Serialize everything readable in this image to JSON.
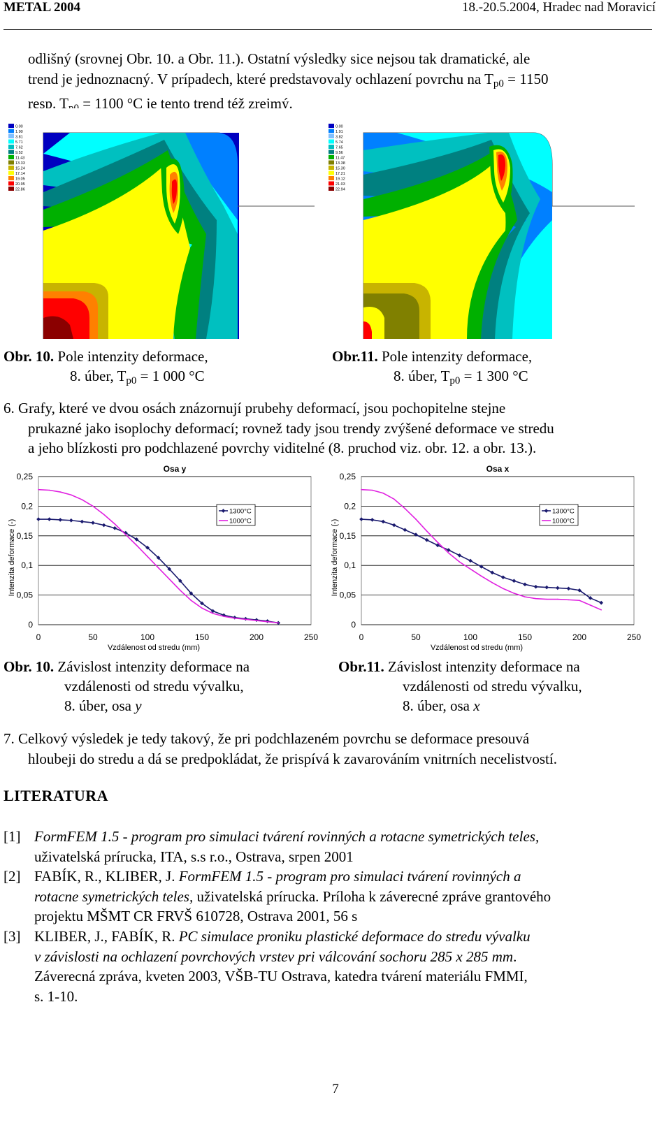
{
  "header": {
    "left": "METAL 2004",
    "right": "18.-20.5.2004, Hradec nad Moravicí"
  },
  "intro": {
    "line1": "odlišný (srovnej  Obr. 10.  a Obr. 11.). Ostatní výsledky sice nejsou tak dramatické, ale",
    "line2": "trend je jednoznacný. V prípadech, které predstavovaly ochlazení povrchu na T",
    "line2_sub": "p0",
    "line2_end": " = 1150",
    "line3": "resp. T",
    "line3_sub": "p0",
    "line3_end": " = 1100 °C je tento trend též zrejmý."
  },
  "fem_captions": {
    "left_label": "Obr. 10.",
    "left_text": " Pole intenzity deformace,",
    "left_line2": "8. úber, T",
    "left_sub": "p0",
    "left_end": " = 1 000 °C",
    "right_label": "Obr.11.",
    "right_text": " Pole intenzity deformace,",
    "right_line2": "8. úber, T",
    "right_sub": "p0",
    "right_end": " = 1 300 °C"
  },
  "fem_legend_values": [
    "0.00",
    "1.90",
    "3.81",
    "5.71",
    "7.62",
    "9.52",
    "11.43",
    "13.33",
    "15.24",
    "17.14",
    "19.05",
    "20.95",
    "22.86"
  ],
  "fem_legend_values_right": [
    "0.00",
    "1.91",
    "3.82",
    "5.74",
    "7.65",
    "9.56",
    "11.47",
    "13.38",
    "15.30",
    "17.21",
    "19.12",
    "21.03",
    "22.94"
  ],
  "fem_colors": [
    "#8b0000",
    "#ff0000",
    "#ff8000",
    "#ffff00",
    "#c8b400",
    "#808000",
    "#00b000",
    "#008080",
    "#00c0c0",
    "#00ffff",
    "#80c0ff",
    "#0080ff",
    "#0000c0"
  ],
  "para6": {
    "line1": "6. Grafy, které ve dvou osách znázornují prubehy deformací, jsou pochopitelne stejne",
    "line2": "prukazné jako isoplochy deformací; rovnež tady jsou trendy zvýšené deformace ve stredu",
    "line3": "a jeho blízkosti pro podchlazené povrchy viditelné (8. pruchod viz. obr. 12. a obr. 13.)."
  },
  "chart_data": [
    {
      "type": "line",
      "title": "Osa y",
      "xlabel": "Vzdálenost od stredu (mm)",
      "ylabel": "Intenzita deformace (-)",
      "xlim": [
        0,
        250
      ],
      "ylim": [
        0,
        0.25
      ],
      "xticks": [
        "0",
        "50",
        "100",
        "150",
        "200",
        "250"
      ],
      "yticks": [
        "0",
        "0,05",
        "0,1",
        "0,15",
        "0,2",
        "0,25"
      ],
      "grid": "horizontal",
      "legend": "top-right",
      "series": [
        {
          "name": "1300°C",
          "color": "#1a1a6e",
          "marker": "diamond",
          "x": [
            0,
            10,
            20,
            30,
            40,
            50,
            60,
            70,
            80,
            90,
            100,
            110,
            120,
            130,
            140,
            150,
            160,
            170,
            180,
            190,
            200,
            210,
            220
          ],
          "y": [
            0.178,
            0.178,
            0.177,
            0.176,
            0.174,
            0.172,
            0.168,
            0.163,
            0.155,
            0.144,
            0.13,
            0.113,
            0.094,
            0.074,
            0.053,
            0.036,
            0.023,
            0.016,
            0.012,
            0.01,
            0.008,
            0.006,
            0.003
          ]
        },
        {
          "name": "1000°C",
          "color": "#e020e0",
          "marker": "none",
          "x": [
            0,
            10,
            20,
            30,
            40,
            50,
            60,
            70,
            80,
            90,
            100,
            110,
            120,
            130,
            140,
            150,
            160,
            170,
            180,
            190,
            200,
            210,
            220
          ],
          "y": [
            0.228,
            0.227,
            0.224,
            0.219,
            0.211,
            0.2,
            0.186,
            0.17,
            0.152,
            0.134,
            0.115,
            0.096,
            0.077,
            0.058,
            0.041,
            0.028,
            0.019,
            0.014,
            0.011,
            0.009,
            0.007,
            0.005,
            0.003
          ]
        }
      ]
    },
    {
      "type": "line",
      "title": "Osa x",
      "xlabel": "Vzdálenost od stredu (mm)",
      "ylabel": "Intenzita deformace (-)",
      "xlim": [
        0,
        250
      ],
      "ylim": [
        0,
        0.25
      ],
      "xticks": [
        "0",
        "50",
        "100",
        "150",
        "200",
        "250"
      ],
      "yticks": [
        "0",
        "0,05",
        "0,1",
        "0,15",
        "0,2",
        "0,25"
      ],
      "grid": "horizontal",
      "legend": "top-right",
      "series": [
        {
          "name": "1300°C",
          "color": "#1a1a6e",
          "marker": "diamond",
          "x": [
            0,
            10,
            20,
            30,
            40,
            50,
            60,
            70,
            80,
            90,
            100,
            110,
            120,
            130,
            140,
            150,
            160,
            170,
            180,
            190,
            200,
            210,
            220
          ],
          "y": [
            0.178,
            0.177,
            0.174,
            0.168,
            0.16,
            0.152,
            0.143,
            0.134,
            0.126,
            0.117,
            0.108,
            0.098,
            0.088,
            0.08,
            0.074,
            0.068,
            0.064,
            0.063,
            0.062,
            0.061,
            0.058,
            0.045,
            0.037
          ]
        },
        {
          "name": "1000°C",
          "color": "#e020e0",
          "marker": "none",
          "x": [
            0,
            10,
            20,
            30,
            40,
            50,
            60,
            70,
            80,
            90,
            100,
            110,
            120,
            130,
            140,
            150,
            160,
            170,
            180,
            190,
            200,
            210,
            220
          ],
          "y": [
            0.228,
            0.227,
            0.222,
            0.212,
            0.196,
            0.178,
            0.158,
            0.139,
            0.121,
            0.106,
            0.094,
            0.082,
            0.071,
            0.061,
            0.053,
            0.047,
            0.044,
            0.043,
            0.043,
            0.042,
            0.041,
            0.033,
            0.025
          ]
        }
      ]
    }
  ],
  "chart_captions": {
    "left_label": "Obr. 10.",
    "left_line1": " Závislost intenzity deformace na",
    "left_line2": "vzdálenosti od stredu vývalku,",
    "left_line3": "8. úber, osa ",
    "left_axis": "y",
    "right_label": "Obr.11.",
    "right_line1": " Závislost intenzity deformace na",
    "right_line2": "vzdálenosti od stredu vývalku,",
    "right_line3": "8. úber, osa ",
    "right_axis": "x"
  },
  "para7": {
    "line1": "7. Celkový výsledek je tedy takový, že pri podchlazeném povrchu se deformace presouvá",
    "line2": "hloubeji do stredu a dá se predpokládat, že prispívá k zavarováním vnitrních necelistvostí."
  },
  "literatura": {
    "heading": "LITERATURA",
    "refs": [
      {
        "num": "[1]",
        "l1_it": "FormFEM 1.5 - program pro simulaci tvárení rovinných a rotacne symetrických teles,",
        "l2": "uživatelská prírucka, ITA, s.s r.o., Ostrava, srpen 2001"
      },
      {
        "num": "[2]",
        "l1_a": "FABÍK, R., KLIBER, J. ",
        "l1_it": "FormFEM 1.5  - program pro simulaci tvárení rovinných a",
        "l2_it": "rotacne symetrických teles,",
        "l2_b": " uživatelská prírucka. Príloha k záverecné zpráve grantového",
        "l3": "projektu MŠMT CR FRVŠ 610728, Ostrava 2001, 56 s"
      },
      {
        "num": "[3]",
        "l1_a": "KLIBER, J., FABÍK, R. ",
        "l1_it": "PC simulace proniku plastické deformace do stredu vývalku",
        "l2_it": "v závislosti na ochlazení povrchových vrstev pri válcování sochoru 285 x 285 mm",
        "l2_b": ".",
        "l3": "Záverecná zpráva, kveten 2003, VŠB-TU Ostrava, katedra tvárení  materiálu FMMI,",
        "l4": "s. 1-10."
      }
    ]
  },
  "page_number": "7"
}
